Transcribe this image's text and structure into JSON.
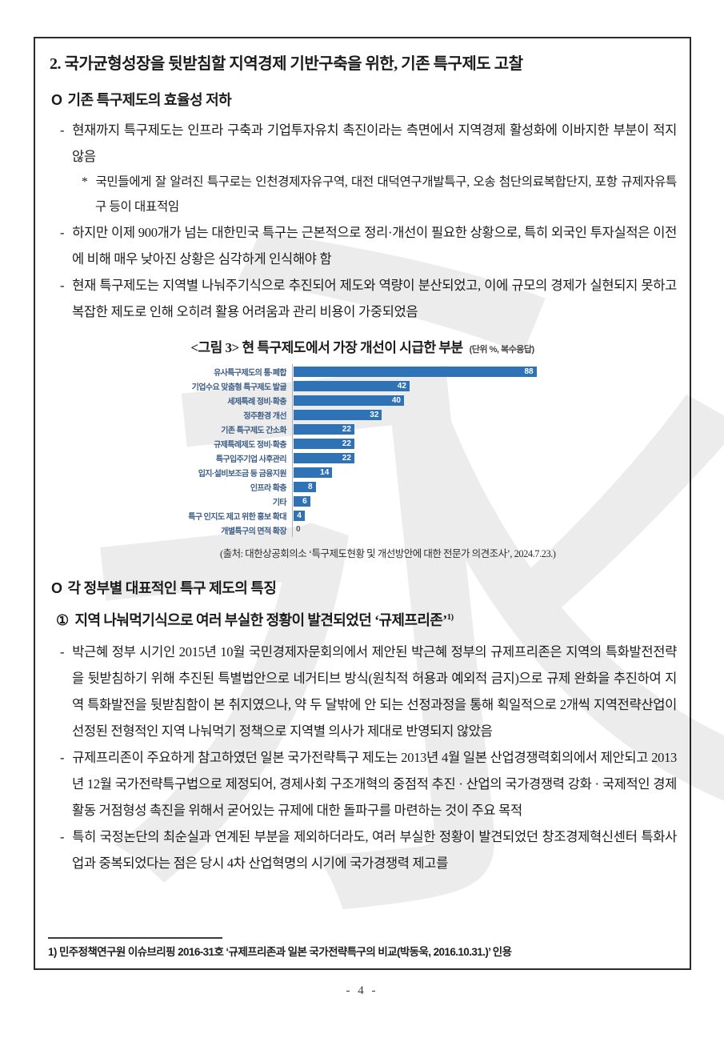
{
  "page": {
    "number": "- 4 -"
  },
  "watermark": {
    "glyph": "永"
  },
  "section1": {
    "title": "2. 국가균형성장을 뒷받침할 지역경제 기반구축을 위한, 기존 특구제도 고찰",
    "heading_bullet": "O",
    "heading": "기존 특구제도의 효율성 저하",
    "bullets": [
      {
        "marker": "-",
        "text": "현재까지 특구제도는 인프라 구축과 기업투자유치 촉진이라는 측면에서 지역경제 활성화에 이바지한 부분이 적지 않음"
      },
      {
        "marker": "*",
        "text": "국민들에게 잘 알려진 특구로는 인천경제자유구역, 대전 대덕연구개발특구, 오송 첨단의료복합단지, 포항 규제자유특구 등이 대표적임"
      },
      {
        "marker": "-",
        "text": "하지만 이제 900개가 넘는 대한민국 특구는 근본적으로 정리·개선이 필요한 상황으로, 특히 외국인 투자실적은 이전에 비해 매우 낮아진 상황은 심각하게 인식해야 함"
      },
      {
        "marker": "-",
        "text": "현재 특구제도는 지역별 나눠주기식으로 추진되어 제도와 역량이 분산되었고, 이에 규모의 경제가 실현되지 못하고 복잡한 제도로 인해 오히려 활용 어려움과 관리 비용이 가중되었음"
      }
    ]
  },
  "chart_data": {
    "type": "bar",
    "title": "<그림 3> 현 특구제도에서 가장 개선이 시급한 부분",
    "unit_note": "(단위 %, 복수응답)",
    "source": "(출처: 대한상공회의소 ‘특구제도현황 및 개선방안에 대한 전문가 의견조사’, 2024.7.23.)",
    "orientation": "horizontal",
    "xlim": [
      0,
      100
    ],
    "grid": false,
    "legend": "none",
    "bar_color": "#2f72b5",
    "label_color": "#3d5c85",
    "value_label_color": "#ffffff",
    "categories": [
      "유사특구제도의 통·폐합",
      "기업수요 맞춤형 특구제도 발굴",
      "세제특례 정비·확충",
      "정주환경 개선",
      "기존 특구제도 간소화",
      "규제특례제도 정비·확충",
      "특구입주기업 사후관리",
      "입지·설비보조금 등 금융지원",
      "인프라 확충",
      "기타",
      "특구 인지도 제고 위한 홍보 확대",
      "개별특구의 면적 확장"
    ],
    "values": [
      88,
      42,
      40,
      32,
      22,
      22,
      22,
      14,
      8,
      6,
      4,
      0
    ]
  },
  "section2": {
    "heading_bullet": "O",
    "heading": "각 정부별 대표적인 특구 제도의 특징",
    "item1_marker": "①",
    "item1_text": "지역 나눠먹기식으로 여러 부실한 정황이 발견되었던 ‘규제프리존’",
    "item1_footnote_ref": "1)",
    "bullets": [
      {
        "marker": "-",
        "text": "박근혜 정부 시기인 2015년 10월 국민경제자문회의에서 제안된 박근혜 정부의 규제프리존은 지역의 특화발전전략을 뒷받침하기 위해 추진된 특별법안으로 네거티브 방식(원칙적 허용과 예외적 금지)으로 규제 완화을 추진하여 지역 특화발전을 뒷받침함이 본 취지였으나, 약 두 달밖에 안 되는 선정과정을 통해 획일적으로 2개씩 지역전략산업이 선정된 전형적인 지역 나눠먹기 정책으로 지역별 의사가 제대로 반영되지 않았음"
      },
      {
        "marker": "-",
        "text": "규제프리존이 주요하게 참고하였던 일본 국가전략특구 제도는 2013년 4월 일본 산업경쟁력회의에서 제안되고 2013년 12월 국가전략특구법으로 제정되어, 경제사회 구조개혁의 중점적 추진 · 산업의 국가경쟁력 강화 · 국제적인 경제활동 거점형성 촉진을 위해서 굳어있는 규제에 대한 돌파구를 마련하는 것이 주요 목적"
      },
      {
        "marker": "-",
        "text": "특히 국정논단의 최순실과 연계된 부분을 제외하더라도, 여러 부실한 정황이 발견되었던 창조경제혁신센터 특화사업과 중복되었다는 점은 당시 4차 산업혁명의 시기에 국가경쟁력 제고를"
      }
    ]
  },
  "footnote": {
    "text": "1) 민주정책연구원 이슈브리핑 2016-31호 ‘규제프리존과 일본 국가전략특구의 비교(박동욱, 2016.10.31.)’ 인용"
  }
}
